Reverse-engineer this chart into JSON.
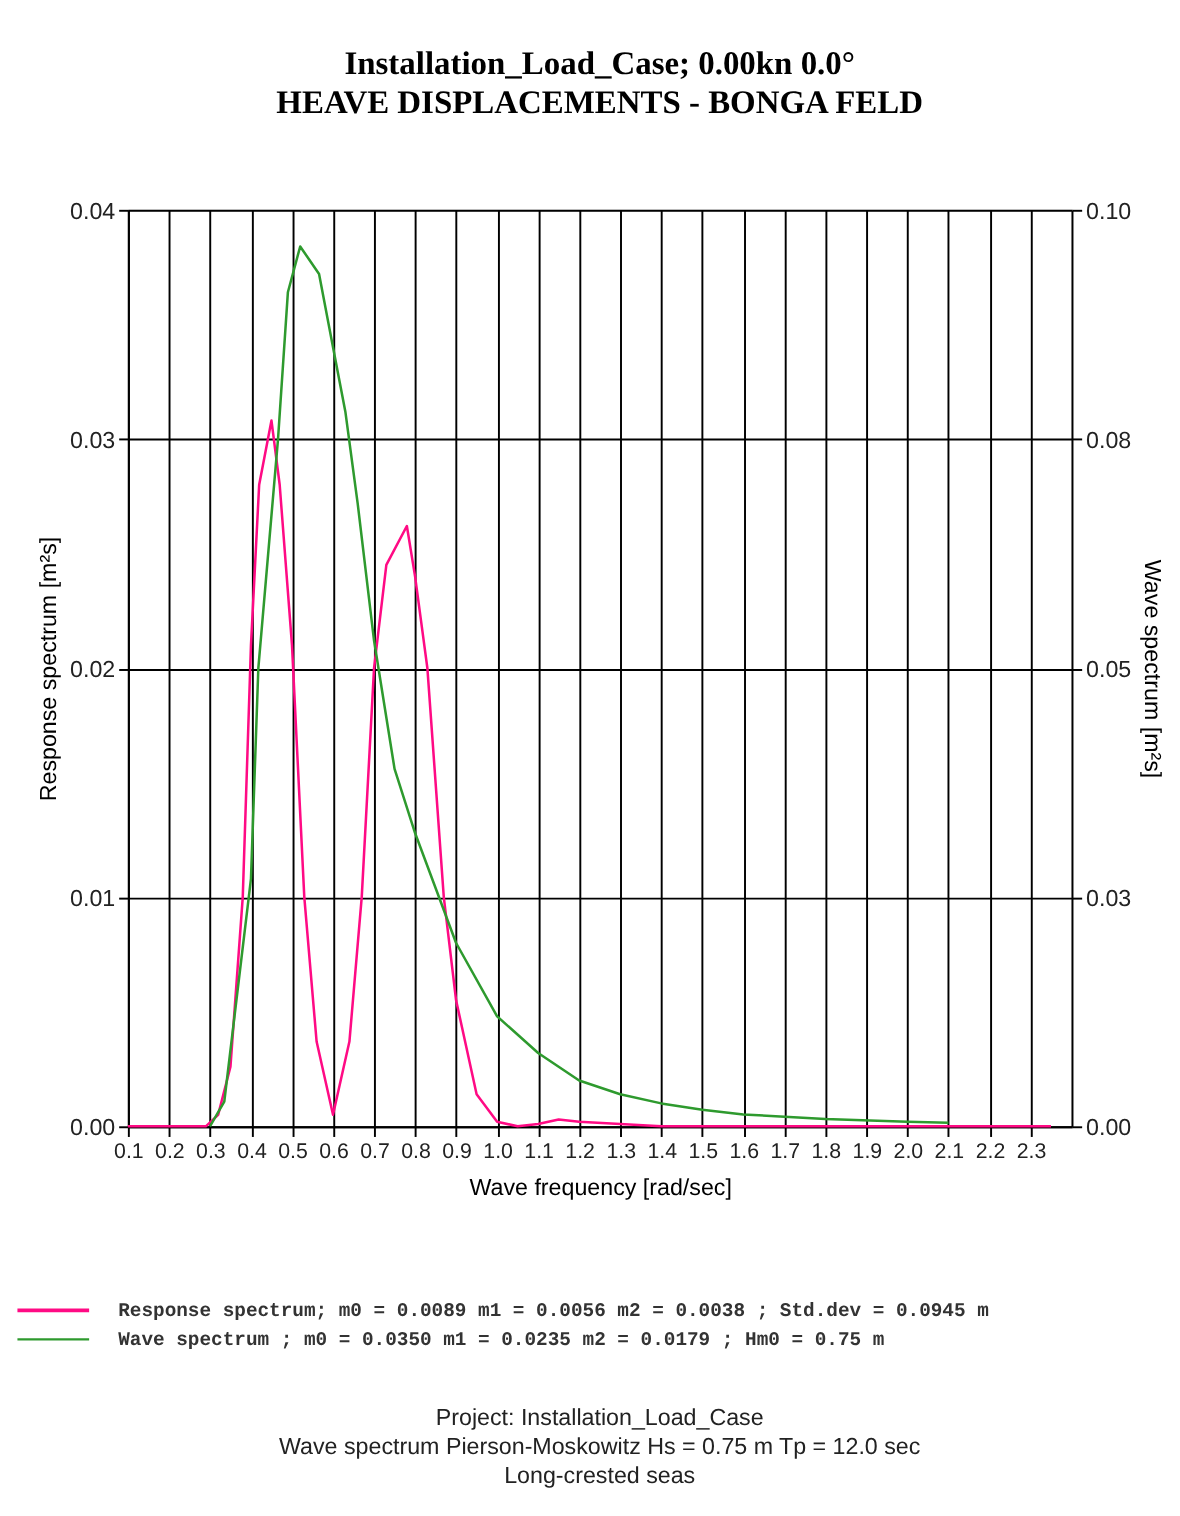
{
  "chart_data": {
    "type": "line",
    "title": "Installation_Load_Case;  0.00kn   0.0°",
    "subtitle": "HEAVE DISPLACEMENTS - BONGA FELD",
    "xlabel": "Wave frequency [rad/sec]",
    "ylabel": "Response spectrum [m²s]",
    "y2label": "Wave spectrum [m²s]",
    "xlim": [
      0.1,
      2.4
    ],
    "xticks": [
      0.1,
      0.2,
      0.3,
      0.4,
      0.5,
      0.6,
      0.7,
      0.8,
      0.9,
      {
        "value": 1,
        "label": "1.0"
      },
      1.1,
      1.2,
      1.3,
      1.4,
      1.5,
      1.6,
      1.7,
      1.8,
      1.9,
      {
        "value": 2,
        "label": "2.0"
      },
      2.1,
      2.2,
      2.3
    ],
    "ylim": [
      0,
      0.04
    ],
    "yticks": [
      {
        "value": 0,
        "label": "0.00"
      },
      {
        "value": 0.01,
        "label": "0.01"
      },
      {
        "value": 0.02,
        "label": "0.02"
      },
      {
        "value": 0.03,
        "label": "0.03"
      },
      {
        "value": 0.04,
        "label": "0.04"
      }
    ],
    "y2lim": [
      0,
      0.1
    ],
    "y2ticks": [
      {
        "value": 0,
        "label": "0.00"
      },
      {
        "value": 0.025,
        "label": "0.03"
      },
      {
        "value": 0.05,
        "label": "0.05"
      },
      {
        "value": 0.075,
        "label": "0.08"
      },
      {
        "value": 0.1,
        "label": "0.10"
      }
    ],
    "grid": true,
    "legend": "bottom",
    "series": [
      {
        "name": "Response spectrum; m0 = 0.0089  m1 = 0.0056 m2 = 0.0038 ; Std.dev = 0.0945 m",
        "color": "#ff0a84",
        "axis": "y",
        "x": [
          0.1,
          0.29,
          0.32,
          0.35,
          0.38,
          0.4,
          0.42,
          0.45,
          0.47,
          0.5,
          0.53,
          0.56,
          0.6,
          0.64,
          0.67,
          0.7,
          0.73,
          0.78,
          0.8,
          0.83,
          0.87,
          0.9,
          0.95,
          1.0,
          1.05,
          1.1,
          1.15,
          1.2,
          1.3,
          1.4,
          2.35
        ],
        "values": [
          0,
          0,
          0.0005,
          0.0026,
          0.01,
          0.021,
          0.028,
          0.0308,
          0.028,
          0.021,
          0.01,
          0.0037,
          0.0005,
          0.0037,
          0.01,
          0.02,
          0.0245,
          0.0262,
          0.024,
          0.02,
          0.01,
          0.0055,
          0.0014,
          0.0002,
          0,
          0.0001,
          0.0003,
          0.0002,
          0.0001,
          0,
          0
        ]
      },
      {
        "name": "Wave spectrum    ; m0 = 0.0350  m1 = 0.0235 m2 = 0.0179 ; Hm0 = 0.75 m",
        "color": "#2e9a2e",
        "axis": "y2",
        "x": [
          0.3,
          0.335,
          0.4,
          0.418,
          0.466,
          0.49,
          0.52,
          0.566,
          0.6,
          0.63,
          0.66,
          0.7,
          0.75,
          0.8,
          0.9,
          1.0,
          1.1,
          1.2,
          1.3,
          1.4,
          1.5,
          1.6,
          1.8,
          2.0,
          2.1
        ],
        "values": [
          0,
          0.0027,
          0.027,
          0.05,
          0.075,
          0.091,
          0.096,
          0.093,
          0.085,
          0.078,
          0.068,
          0.053,
          0.039,
          0.032,
          0.02,
          0.012,
          0.008,
          0.005,
          0.0035,
          0.0025,
          0.0018,
          0.0013,
          0.0008,
          0.0005,
          0.0004
        ]
      }
    ],
    "annotations": [
      "Project: Installation_Load_Case",
      "Wave spectrum Pierson-Moskowitz  Hs =  0.75 m Tp = 12.0 sec",
      "Long-crested seas"
    ]
  }
}
